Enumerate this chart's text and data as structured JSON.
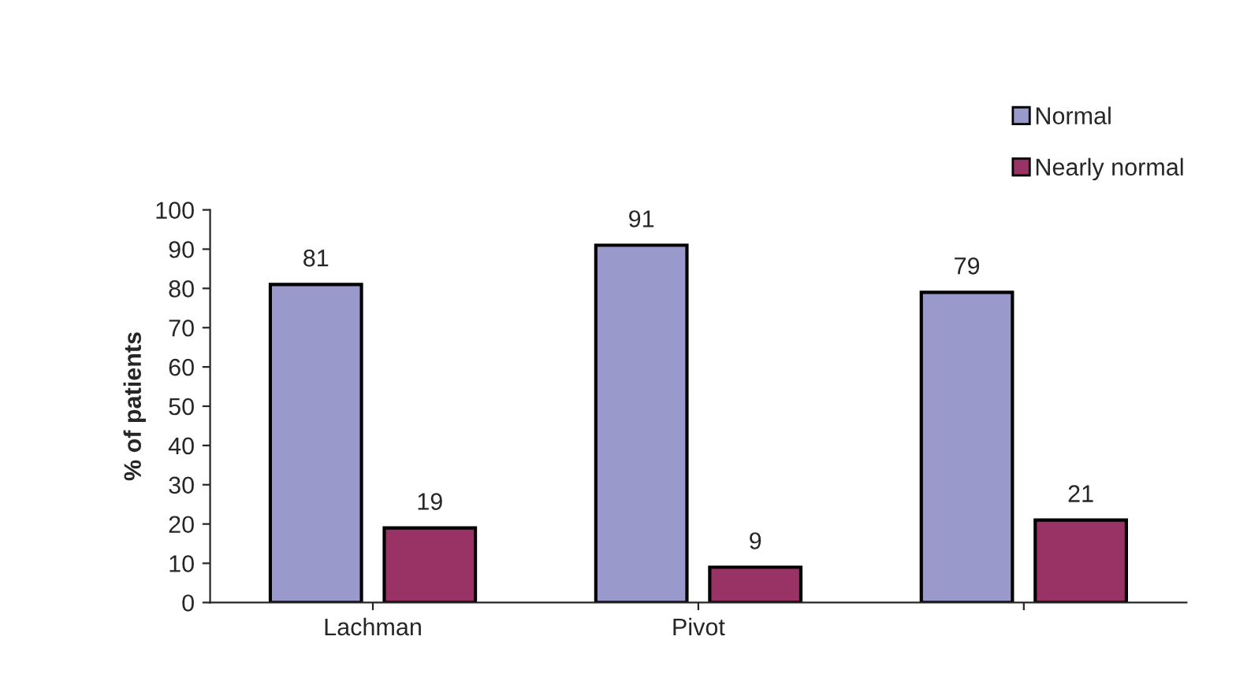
{
  "chart_data": {
    "type": "bar",
    "ylabel": "% of patients",
    "categories": [
      "Lachman",
      "Pivot",
      null
    ],
    "series": [
      {
        "name": "Normal",
        "color": "#9999cc",
        "values": [
          81,
          91,
          79
        ]
      },
      {
        "name": "Nearly normal",
        "color": "#993366",
        "values": [
          19,
          9,
          21
        ]
      }
    ],
    "ylim": [
      0,
      100
    ],
    "yticks": [
      0,
      10,
      20,
      30,
      40,
      50,
      60,
      70,
      80,
      90,
      100
    ],
    "data_labels": true,
    "legend": "top right",
    "grid": false
  }
}
